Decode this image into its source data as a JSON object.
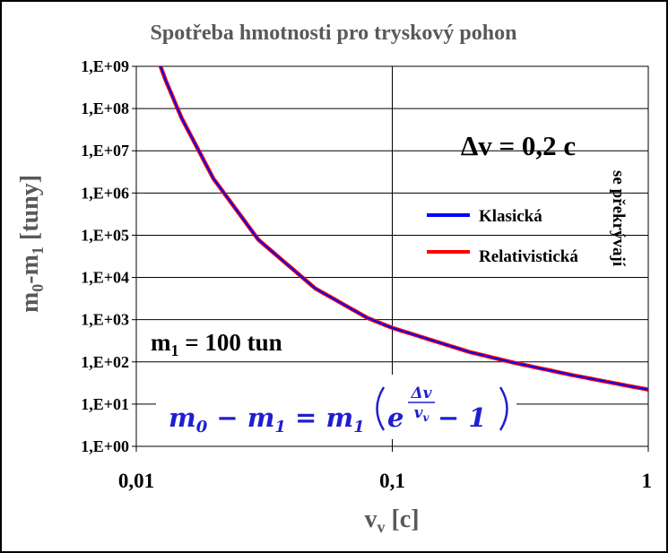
{
  "chart_data": {
    "type": "line",
    "title": "Spotřeba hmotnosti pro tryskový pohon",
    "xlabel_main": "v",
    "xlabel_sub": "v",
    "xlabel_tail": " [c]",
    "ylabel_main": "m",
    "ylabel_sub0": "0",
    "ylabel_mid": "-m",
    "ylabel_sub1": "1",
    "ylabel_tail": " [tuny]",
    "x_scale": "log",
    "y_scale": "log",
    "xlim": [
      0.01,
      1
    ],
    "ylim": [
      1,
      1000000000
    ],
    "x_ticks": [
      "0,01",
      "0,1",
      "1"
    ],
    "y_ticks": [
      "1,E+00",
      "1,E+01",
      "1,E+02",
      "1,E+03",
      "1,E+04",
      "1,E+05",
      "1,E+06",
      "1,E+07",
      "1,E+08",
      "1,E+09"
    ],
    "grid": true,
    "legend_position": "right",
    "series": [
      {
        "name": "Klasická",
        "color": "#0000ff",
        "x": [
          0.0116,
          0.013,
          0.015,
          0.02,
          0.03,
          0.05,
          0.08,
          0.1,
          0.2,
          0.3,
          0.5,
          0.8,
          1.0
        ],
        "y": [
          3200000000.0,
          480000000.0,
          61000000.0,
          2200000.0,
          78000.0,
          5500.0,
          1100.0,
          639,
          172,
          94.9,
          49.2,
          28.4,
          22.1
        ]
      },
      {
        "name": "Relativistická",
        "color": "#ff0000",
        "x": [
          0.0116,
          0.013,
          0.015,
          0.02,
          0.03,
          0.05,
          0.08,
          0.1,
          0.2,
          0.3,
          0.5,
          0.8,
          1.0
        ],
        "y": [
          3200000000.0,
          480000000.0,
          61000000.0,
          2200000.0,
          78000.0,
          5500.0,
          1100.0,
          639,
          172,
          94.9,
          49.2,
          28.4,
          22.1
        ]
      }
    ],
    "annotations": {
      "delta_v": "Δv = 0,2 c",
      "m1_main": "m",
      "m1_sub": "1",
      "m1_tail": " = 100 tun",
      "overlap_note": "se překrývají",
      "formula": {
        "m": "m",
        "sub0": "0",
        "minus": " − ",
        "sub1": "1",
        "equals": " = ",
        "e": "e",
        "num": "Δv",
        "den_main": "v",
        "den_sub": "v",
        "minus_one": " − 1"
      }
    }
  }
}
